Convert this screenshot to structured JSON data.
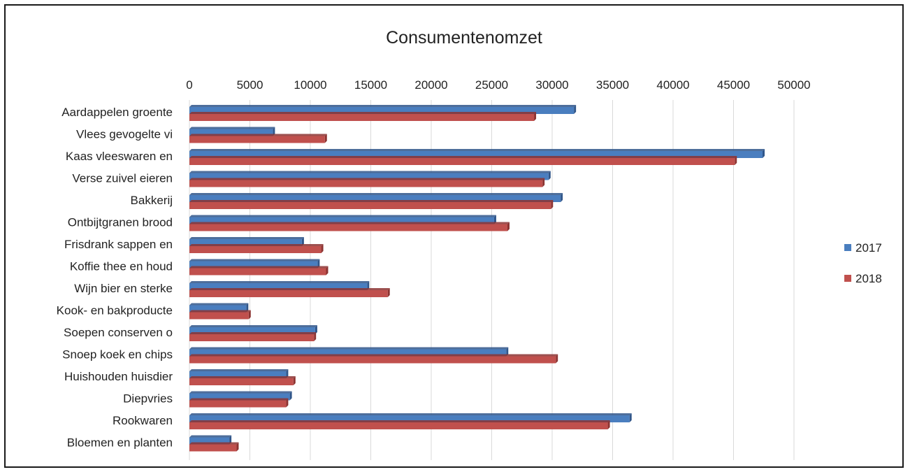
{
  "chart_data": {
    "type": "bar",
    "orientation": "horizontal",
    "title": "Consumentenomzet",
    "xlabel": "",
    "ylabel": "",
    "xlim": [
      0,
      50000
    ],
    "x_ticks": [
      "0",
      "5000",
      "10000",
      "15000",
      "20000",
      "25000",
      "30000",
      "35000",
      "40000",
      "45000",
      "50000"
    ],
    "x_axis_position": "top",
    "grid": true,
    "legend_position": "right",
    "categories": [
      "Aardappelen groente",
      "Vlees gevogelte vi",
      "Kaas vleeswaren en",
      "Verse zuivel eieren",
      "Bakkerij",
      "Ontbijtgranen brood",
      "Frisdrank sappen en",
      "Koffie thee en houd",
      "Wijn bier en sterke",
      "Kook- en bakproducte",
      "Soepen conserven o",
      "Snoep koek en chips",
      "Huishouden huisdier",
      "Diepvries",
      "Rookwaren",
      "Bloemen en planten"
    ],
    "series": [
      {
        "name": "2017",
        "color": "#4a7ebf",
        "values": [
          31800,
          6900,
          47400,
          29700,
          30700,
          25200,
          9300,
          10600,
          14700,
          4700,
          10400,
          26200,
          8000,
          8300,
          36400,
          3300
        ]
      },
      {
        "name": "2018",
        "color": "#c0504d",
        "values": [
          28500,
          11200,
          45100,
          29200,
          29900,
          26300,
          10900,
          11300,
          16400,
          4900,
          10300,
          30300,
          8600,
          8000,
          34600,
          3900
        ]
      }
    ]
  }
}
